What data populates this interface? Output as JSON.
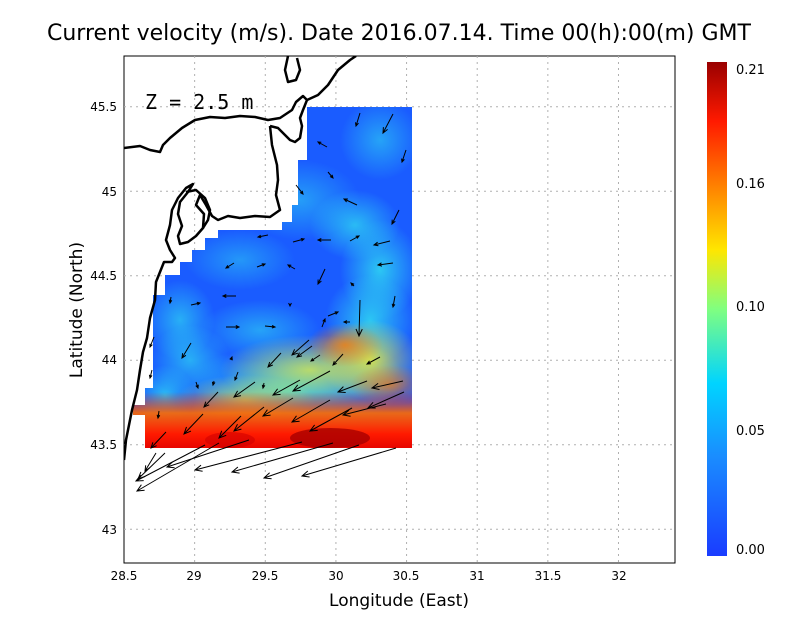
{
  "chart_data": {
    "type": "heatmap",
    "title": "Current velocity (m/s). Date 2016.07.14. Time 00(h):00(m) GMT",
    "xlabel": "Longitude (East)",
    "ylabel": "Latitude (North)",
    "depth_label": "Z = 2.5 m",
    "x_ticks": [
      "28.5",
      "29",
      "29.5",
      "30",
      "30.5",
      "31",
      "31.5",
      "32"
    ],
    "y_ticks": [
      "43",
      "43.5",
      "44",
      "44.5",
      "45",
      "45.5"
    ],
    "xlim": [
      28.5,
      32.4
    ],
    "ylim": [
      42.8,
      45.8
    ],
    "grid": true,
    "colorbar": {
      "ticks": [
        "0.00",
        "0.05",
        "0.10",
        "0.16",
        "0.21"
      ],
      "range": [
        0.0,
        0.21
      ],
      "colors": [
        "#1a3cff",
        "#1a8cff",
        "#00d4ff",
        "#80ff80",
        "#ffe600",
        "#ff8000",
        "#ff1a00",
        "#990000"
      ]
    }
  }
}
